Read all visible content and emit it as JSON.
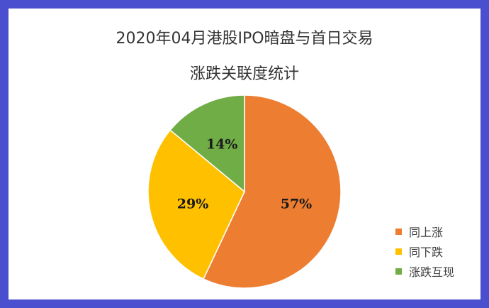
{
  "chart_data": {
    "type": "pie",
    "title_line1": "2020年04月港股IPO暗盘与首日交易",
    "title_line2": "涨跌关联度统计",
    "categories": [
      "同上涨",
      "同下跌",
      "涨跌互现"
    ],
    "values": [
      57,
      29,
      14
    ],
    "labels": [
      "57%",
      "29%",
      "14%"
    ],
    "colors": [
      "#ed7d31",
      "#ffc000",
      "#70ad47"
    ],
    "legend_position": "bottom-right"
  }
}
